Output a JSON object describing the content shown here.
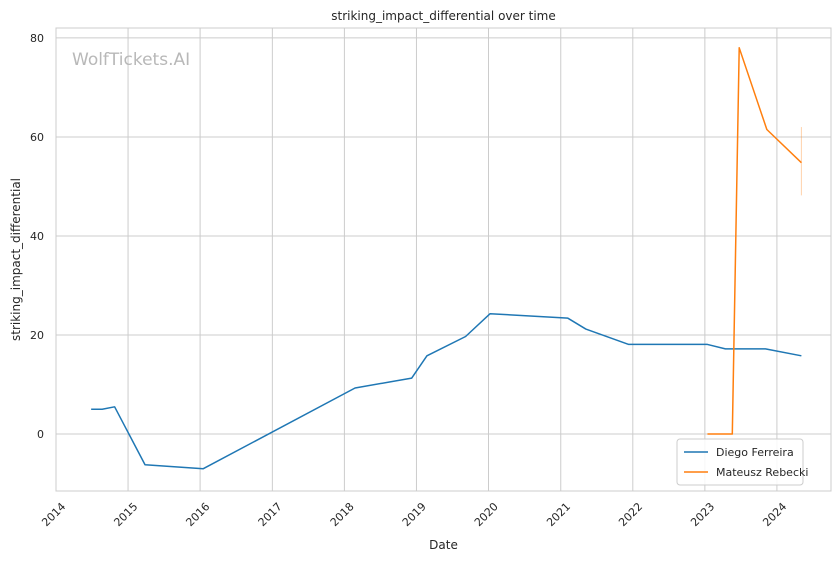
{
  "chart_data": {
    "type": "line",
    "title": "striking_impact_differential over time",
    "xlabel": "Date",
    "ylabel": "striking_impact_differential",
    "watermark": "WolfTickets.AI",
    "xlim": [
      "2014-01-01",
      "2024-10-01"
    ],
    "ylim": [
      -11.5,
      82
    ],
    "x_ticks": [
      "2014",
      "2015",
      "2016",
      "2017",
      "2018",
      "2019",
      "2020",
      "2021",
      "2022",
      "2023",
      "2024"
    ],
    "y_ticks": [
      0,
      20,
      40,
      60,
      80
    ],
    "grid": true,
    "legend_position": "bottom-right",
    "series": [
      {
        "name": "Diego Ferreira",
        "color": "#1f77b4",
        "points": [
          [
            "2014-06-28",
            5.0
          ],
          [
            "2014-08-23",
            5.0
          ],
          [
            "2014-10-25",
            5.5
          ],
          [
            "2015-03-28",
            -6.2
          ],
          [
            "2016-01-17",
            -7.0
          ],
          [
            "2018-02-24",
            9.3
          ],
          [
            "2018-12-08",
            11.3
          ],
          [
            "2019-02-23",
            15.8
          ],
          [
            "2019-09-07",
            19.7
          ],
          [
            "2020-01-09",
            24.3
          ],
          [
            "2021-02-06",
            23.4
          ],
          [
            "2021-05-08",
            21.2
          ],
          [
            "2021-12-11",
            18.1
          ],
          [
            "2023-01-14",
            18.1
          ],
          [
            "2023-04-15",
            17.2
          ],
          [
            "2023-11-04",
            17.2
          ],
          [
            "2024-05-04",
            15.8
          ]
        ]
      },
      {
        "name": "Mateusz Rebecki",
        "color": "#ff7f0e",
        "points": [
          [
            "2023-01-14",
            0.0
          ],
          [
            "2023-05-20",
            0.0
          ],
          [
            "2023-06-24",
            78.0
          ],
          [
            "2023-11-11",
            61.5
          ],
          [
            "2024-05-04",
            54.8
          ]
        ],
        "error_bar": {
          "x": "2024-05-04",
          "low": 48.2,
          "high": 62.0
        }
      }
    ]
  }
}
